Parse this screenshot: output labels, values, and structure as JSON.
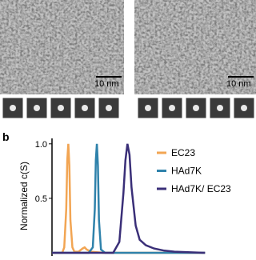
{
  "figure": {
    "panel_a": {
      "scale_bars": [
        "10 nm",
        "10 nm"
      ]
    },
    "panel_b_label": "b"
  },
  "chart_data": {
    "type": "line",
    "ylabel": "Normalized c(S)",
    "xlim": [
      0,
      100
    ],
    "ylim": [
      0,
      1.05
    ],
    "yticks": [
      0.5,
      {
        "value": 1,
        "label": "1.0"
      }
    ],
    "series": [
      {
        "name": "EC23",
        "color": "#f2a553",
        "x": [
          0,
          5,
          6,
          7,
          7.5,
          8,
          8.5,
          9,
          10,
          11,
          13,
          15,
          16,
          17,
          19,
          25,
          40,
          60,
          75
        ],
        "values": [
          0,
          0,
          0.05,
          0.4,
          0.85,
          1.0,
          0.8,
          0.3,
          0.05,
          0.01,
          0.01,
          0.04,
          0.05,
          0.03,
          0.01,
          0,
          0,
          0,
          0
        ]
      },
      {
        "name": "HAd7K",
        "color": "#2f82ab",
        "x": [
          0,
          18,
          20,
          21,
          21.5,
          22,
          22.5,
          23,
          24,
          26,
          40,
          75
        ],
        "values": [
          0,
          0,
          0.05,
          0.4,
          0.85,
          1.0,
          0.8,
          0.3,
          0.03,
          0,
          0,
          0
        ]
      },
      {
        "name": "HAd7K/ EC23",
        "color": "#3a2f78",
        "x": [
          0,
          30,
          33,
          35,
          36,
          37,
          38,
          39,
          41,
          43,
          46,
          50,
          55,
          60,
          75
        ],
        "values": [
          0,
          0,
          0.1,
          0.55,
          0.85,
          1.0,
          0.9,
          0.6,
          0.25,
          0.12,
          0.07,
          0.04,
          0.02,
          0.01,
          0
        ]
      }
    ]
  }
}
